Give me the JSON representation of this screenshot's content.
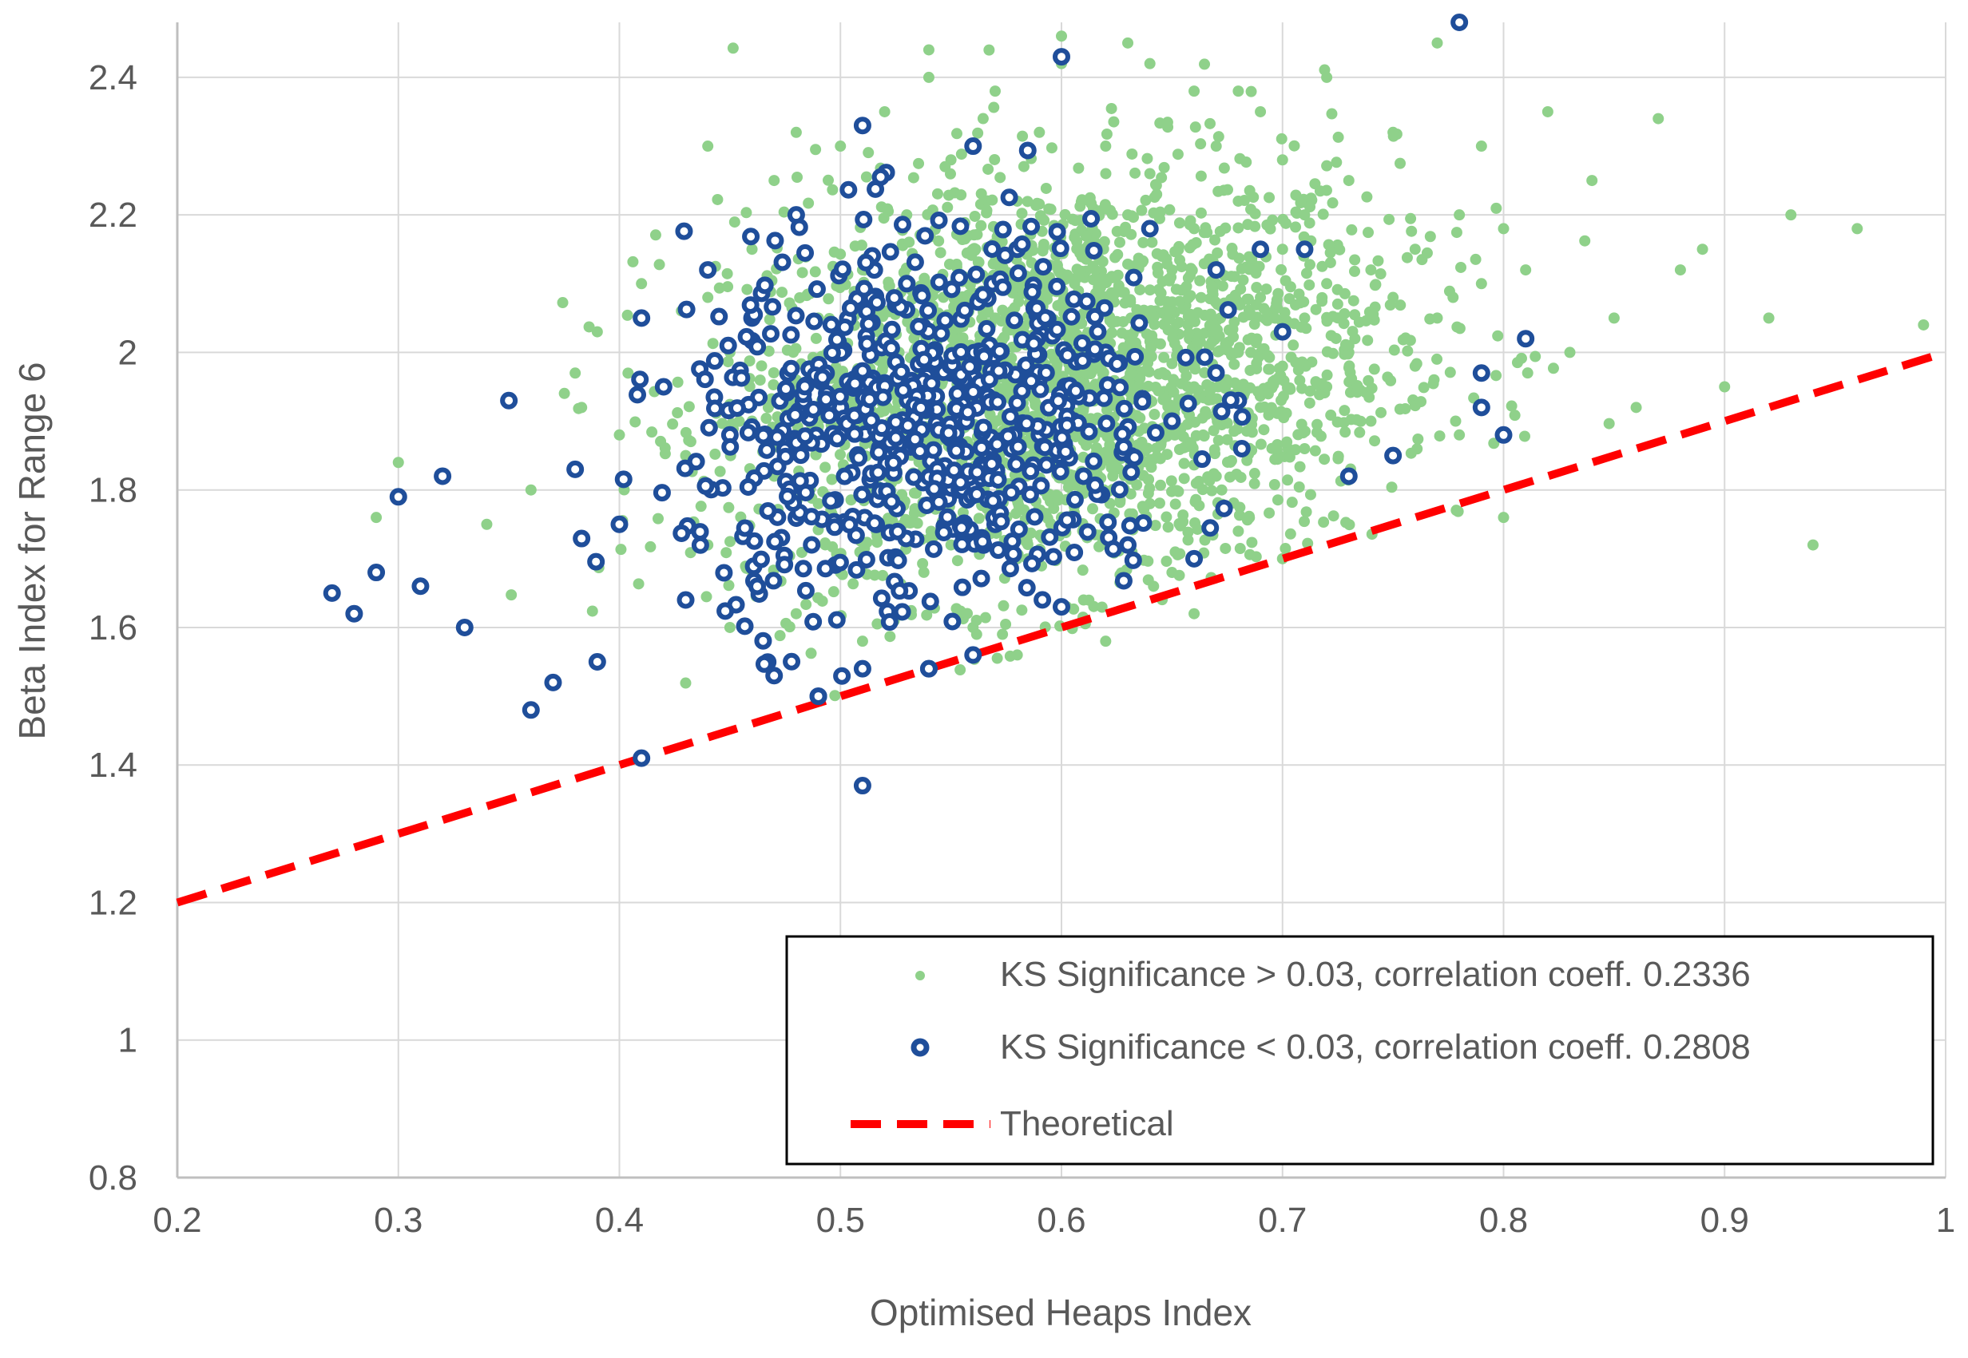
{
  "chart_data": {
    "type": "scatter",
    "title": "",
    "xlabel": "Optimised Heaps Index",
    "ylabel": "Beta Index for Range 6",
    "xlim": [
      0.2,
      1.0
    ],
    "ylim": [
      0.8,
      2.4
    ],
    "x_ticks": [
      "0.2",
      "0.3",
      "0.4",
      "0.5",
      "0.6",
      "0.7",
      "0.8",
      "0.9",
      "1"
    ],
    "y_ticks": [
      "0.8",
      "1",
      "1.2",
      "1.4",
      "1.6",
      "1.8",
      "2",
      "2.2",
      "2.4"
    ],
    "grid": true,
    "legend_position": "bottom-right",
    "series": [
      {
        "name": "KS Significance > 0.03, correlation coeff. 0.2336",
        "marker": "filled-circle",
        "color": "#8fd18a",
        "x": [
          0.29,
          0.3,
          0.34,
          0.36,
          0.38,
          0.39,
          0.4,
          0.41,
          0.42,
          0.43,
          0.44,
          0.44,
          0.45,
          0.45,
          0.46,
          0.46,
          0.47,
          0.47,
          0.48,
          0.48,
          0.49,
          0.49,
          0.5,
          0.5,
          0.5,
          0.51,
          0.51,
          0.51,
          0.52,
          0.52,
          0.52,
          0.53,
          0.53,
          0.53,
          0.54,
          0.54,
          0.54,
          0.55,
          0.55,
          0.55,
          0.56,
          0.56,
          0.56,
          0.57,
          0.57,
          0.57,
          0.58,
          0.58,
          0.58,
          0.59,
          0.59,
          0.59,
          0.6,
          0.6,
          0.6,
          0.61,
          0.61,
          0.61,
          0.62,
          0.62,
          0.62,
          0.63,
          0.63,
          0.63,
          0.64,
          0.64,
          0.64,
          0.65,
          0.65,
          0.65,
          0.66,
          0.66,
          0.66,
          0.67,
          0.67,
          0.67,
          0.68,
          0.68,
          0.68,
          0.69,
          0.69,
          0.69,
          0.7,
          0.7,
          0.7,
          0.71,
          0.71,
          0.71,
          0.72,
          0.72,
          0.72,
          0.73,
          0.73,
          0.74,
          0.74,
          0.75,
          0.75,
          0.76,
          0.76,
          0.77,
          0.77,
          0.78,
          0.78,
          0.79,
          0.79,
          0.8,
          0.8,
          0.81,
          0.82,
          0.83,
          0.84,
          0.85,
          0.86,
          0.87,
          0.88,
          0.89,
          0.9,
          0.92,
          0.93,
          0.94,
          0.96,
          0.99,
          0.58,
          0.62,
          0.66,
          0.7,
          0.54,
          0.48,
          0.44,
          0.6,
          0.64,
          0.68
        ],
        "y": [
          1.76,
          1.84,
          1.75,
          1.8,
          1.97,
          2.03,
          1.88,
          2.1,
          1.95,
          1.85,
          2.08,
          1.72,
          2.0,
          1.6,
          1.9,
          2.15,
          1.82,
          2.25,
          1.96,
          1.62,
          2.05,
          1.78,
          1.93,
          2.3,
          1.68,
          2.12,
          1.85,
          1.58,
          2.02,
          1.74,
          2.35,
          1.95,
          2.2,
          1.65,
          1.88,
          2.4,
          2.08,
          1.98,
          1.72,
          2.28,
          2.15,
          1.82,
          1.6,
          2.05,
          2.38,
          1.9,
          2.22,
          1.7,
          1.95,
          2.1,
          1.85,
          2.32,
          2.0,
          1.76,
          2.42,
          2.15,
          1.92,
          1.64,
          2.08,
          2.3,
          1.85,
          2.2,
          1.96,
          2.45,
          2.05,
          1.78,
          2.26,
          2.12,
          1.9,
          1.68,
          2.18,
          2.38,
          1.95,
          2.1,
          1.82,
          2.3,
          2.0,
          2.22,
          1.74,
          2.08,
          1.92,
          2.35,
          2.15,
          1.98,
          2.28,
          2.05,
          1.86,
          2.2,
          2.1,
          1.95,
          2.4,
          2.0,
          2.25,
          2.12,
          1.9,
          2.08,
          2.32,
          2.15,
          1.98,
          2.45,
          2.05,
          2.2,
          1.88,
          2.3,
          2.1,
          2.18,
          1.76,
          2.12,
          2.35,
          2.0,
          2.25,
          2.05,
          1.92,
          2.34,
          2.12,
          2.15,
          1.95,
          2.05,
          2.2,
          1.72,
          2.18,
          2.04,
          1.56,
          1.58,
          1.62,
          1.7,
          2.44,
          2.32,
          2.3,
          2.46,
          2.42,
          2.38
        ]
      },
      {
        "name": "KS Significance < 0.03, correlation coeff. 0.2808",
        "marker": "hollow-circle",
        "color": "#1f4e9a",
        "x": [
          0.27,
          0.28,
          0.29,
          0.3,
          0.31,
          0.32,
          0.33,
          0.35,
          0.36,
          0.37,
          0.38,
          0.39,
          0.4,
          0.41,
          0.42,
          0.43,
          0.44,
          0.45,
          0.46,
          0.47,
          0.48,
          0.49,
          0.5,
          0.51,
          0.51,
          0.52,
          0.53,
          0.54,
          0.55,
          0.56,
          0.57,
          0.58,
          0.59,
          0.6,
          0.61,
          0.62,
          0.63,
          0.64,
          0.65,
          0.66,
          0.67,
          0.68,
          0.69,
          0.7,
          0.71,
          0.73,
          0.75,
          0.78,
          0.79,
          0.8,
          0.81,
          0.79,
          0.6,
          0.51,
          0.41,
          0.49,
          0.54,
          0.56
        ],
        "y": [
          1.65,
          1.62,
          1.68,
          1.79,
          1.66,
          1.82,
          1.6,
          1.93,
          1.48,
          1.52,
          1.83,
          1.55,
          1.75,
          1.41,
          1.95,
          1.64,
          2.12,
          1.88,
          2.05,
          1.53,
          2.2,
          1.5,
          1.92,
          2.33,
          1.37,
          1.85,
          2.1,
          1.54,
          1.97,
          2.3,
          1.75,
          2.15,
          1.88,
          2.43,
          1.82,
          2.0,
          1.72,
          2.18,
          1.9,
          1.7,
          2.12,
          1.93,
          2.15,
          2.03,
          2.15,
          1.82,
          1.85,
          2.48,
          1.97,
          1.88,
          2.02,
          1.92,
          1.63,
          1.54,
          2.05,
          1.5,
          1.54,
          1.56
        ]
      },
      {
        "name": "Theoretical",
        "marker": "dashed-line",
        "color": "#ff0000",
        "x": [
          0.2,
          1.0
        ],
        "y": [
          1.2,
          2.0
        ]
      }
    ]
  }
}
